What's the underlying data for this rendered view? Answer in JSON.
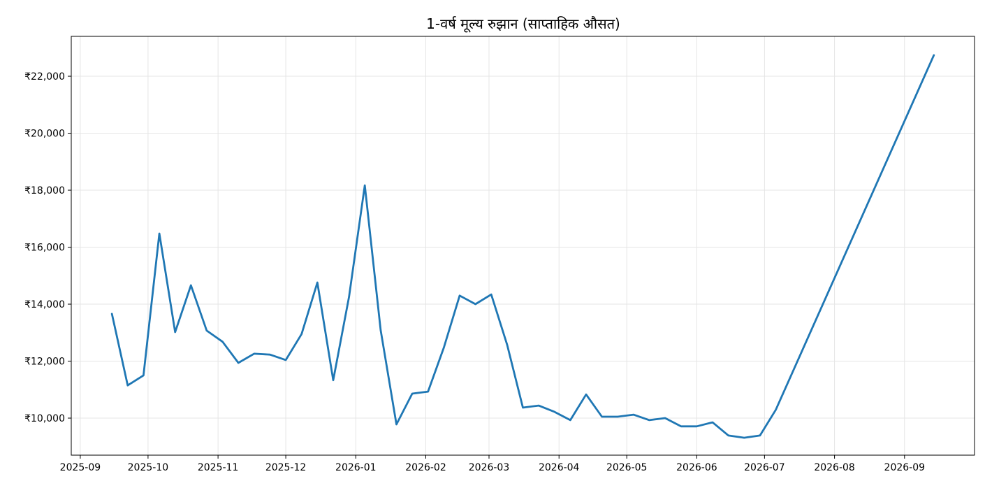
{
  "chart_data": {
    "type": "line",
    "title": "1-वर्ष मूल्य रुझान (साप्ताहिक औसत)",
    "xlabel": "",
    "ylabel": "",
    "grid": true,
    "xlim": [
      "2025-08-28",
      "2026-10-02"
    ],
    "ylim": [
      8700,
      23400
    ],
    "x_ticks": [
      "2025-09",
      "2025-10",
      "2025-11",
      "2025-12",
      "2026-01",
      "2026-02",
      "2026-03",
      "2026-04",
      "2026-05",
      "2026-06",
      "2026-07",
      "2026-08",
      "2026-09"
    ],
    "y_ticks": [
      10000,
      12000,
      14000,
      16000,
      18000,
      20000,
      22000
    ],
    "y_tick_labels": [
      "₹10,000",
      "₹12,000",
      "₹14,000",
      "₹16,000",
      "₹18,000",
      "₹20,000",
      "₹22,000"
    ],
    "line_color": "#1f77b4",
    "series": [
      {
        "x": [
          "2025-09-15",
          "2025-09-22",
          "2025-09-29",
          "2025-10-06",
          "2025-10-13",
          "2025-10-20",
          "2025-10-27",
          "2025-11-03",
          "2025-11-10",
          "2025-11-17",
          "2025-11-24",
          "2025-12-01",
          "2025-12-08",
          "2025-12-15",
          "2025-12-22",
          "2025-12-29",
          "2026-01-05",
          "2026-01-12",
          "2026-01-19",
          "2026-01-26",
          "2026-02-02",
          "2026-02-09",
          "2026-02-16",
          "2026-02-23",
          "2026-03-02",
          "2026-03-09",
          "2026-03-16",
          "2026-03-23",
          "2026-03-30",
          "2026-04-06",
          "2026-04-13",
          "2026-04-20",
          "2026-04-27",
          "2026-05-04",
          "2026-05-11",
          "2026-05-18",
          "2026-05-25",
          "2026-06-01",
          "2026-06-08",
          "2026-06-15",
          "2026-06-22",
          "2026-06-29",
          "2026-07-06",
          "2026-09-14"
        ],
        "values": [
          13660,
          11150,
          11500,
          16480,
          13020,
          14660,
          13070,
          12680,
          11940,
          12260,
          12230,
          12040,
          12950,
          14760,
          11330,
          14250,
          18170,
          13090,
          9780,
          10860,
          10930,
          12480,
          14300,
          14000,
          14340,
          12580,
          10370,
          10440,
          10220,
          9930,
          10830,
          10050,
          10050,
          10120,
          9930,
          10000,
          9710,
          9710,
          9850,
          9390,
          9310,
          9390,
          10290,
          22740
        ]
      }
    ]
  }
}
